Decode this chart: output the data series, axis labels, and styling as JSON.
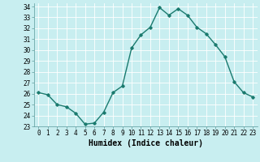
{
  "x": [
    0,
    1,
    2,
    3,
    4,
    5,
    6,
    7,
    8,
    9,
    10,
    11,
    12,
    13,
    14,
    15,
    16,
    17,
    18,
    19,
    20,
    21,
    22,
    23
  ],
  "y": [
    26.1,
    25.9,
    25.0,
    24.8,
    24.2,
    23.2,
    23.3,
    24.3,
    26.1,
    26.7,
    30.2,
    31.4,
    32.1,
    33.9,
    33.2,
    33.8,
    33.2,
    32.1,
    31.5,
    30.5,
    29.4,
    27.1,
    26.1,
    25.7
  ],
  "xlabel": "Humidex (Indice chaleur)",
  "ylabel": "",
  "xlim": [
    -0.5,
    23.5
  ],
  "ylim": [
    23,
    34.3
  ],
  "yticks": [
    23,
    24,
    25,
    26,
    27,
    28,
    29,
    30,
    31,
    32,
    33,
    34
  ],
  "xticks": [
    0,
    1,
    2,
    3,
    4,
    5,
    6,
    7,
    8,
    9,
    10,
    11,
    12,
    13,
    14,
    15,
    16,
    17,
    18,
    19,
    20,
    21,
    22,
    23
  ],
  "line_color": "#1a7a6e",
  "marker": "D",
  "marker_size": 1.8,
  "bg_color": "#c8eef0",
  "grid_color": "#b0dde0",
  "xlabel_fontsize": 7,
  "tick_fontsize": 5.5,
  "line_width": 1.0
}
